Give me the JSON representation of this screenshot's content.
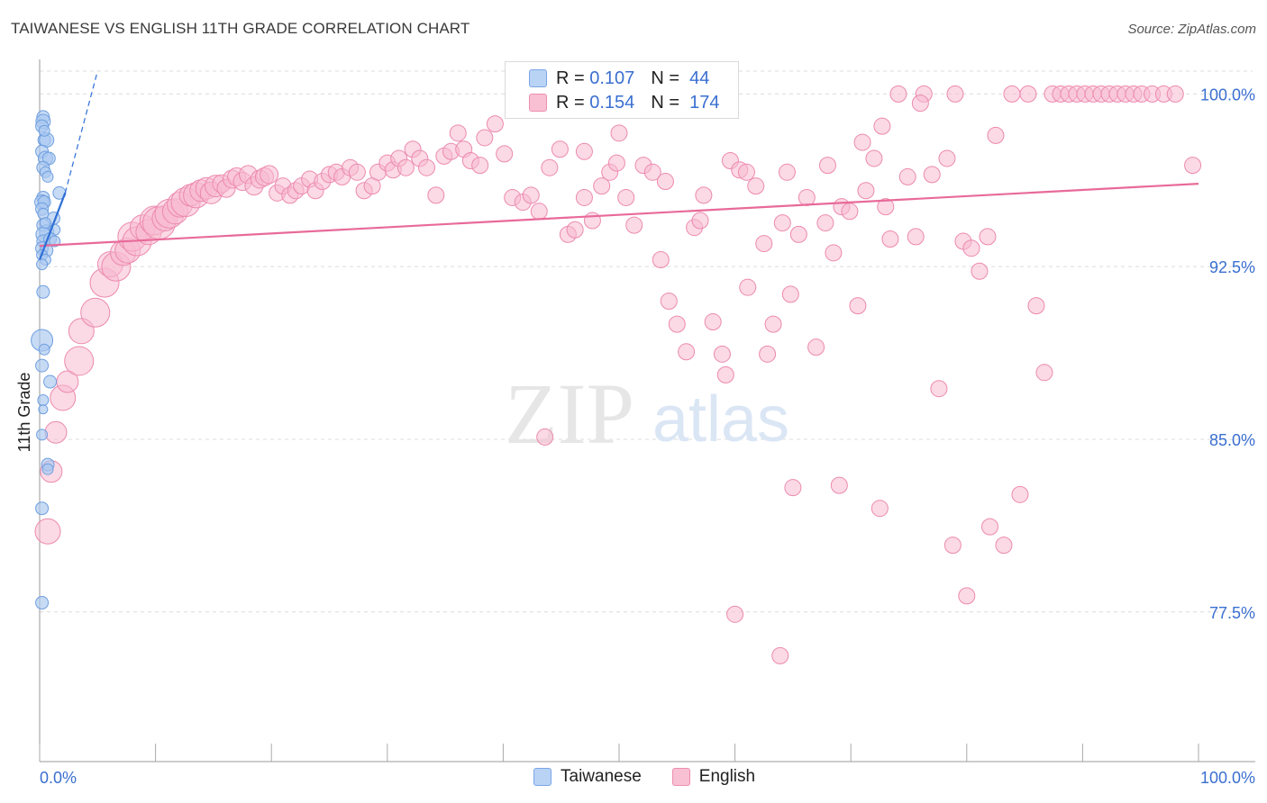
{
  "header": {
    "title": "TAIWANESE VS ENGLISH 11TH GRADE CORRELATION CHART",
    "source": "Source: ZipAtlas.com"
  },
  "watermark": {
    "zip": "ZIP",
    "atlas": "atlas"
  },
  "legend": {
    "r_label": "R =",
    "n_label": "N =",
    "rows": [
      {
        "name": "Taiwanese",
        "r": "0.107",
        "n": "44"
      },
      {
        "name": "English",
        "r": "0.154",
        "n": "174"
      }
    ]
  },
  "bottom_legend": {
    "taiwanese": "Taiwanese",
    "english": "English"
  },
  "colors": {
    "taiwanese_fill": "#a9c8f0",
    "taiwanese_stroke": "#6f9fe0",
    "taiwanese_line": "#2f6fd6",
    "english_fill": "#f7bad0",
    "english_stroke": "#ec8aae",
    "english_line": "#e86a99",
    "tick_label": "#3a6fd0",
    "grid": "#dcdcdc"
  },
  "chart_data": {
    "type": "scatter",
    "title": "TAIWANESE VS ENGLISH 11TH GRADE CORRELATION CHART",
    "xlabel": "",
    "ylabel": "11th Grade",
    "xlim": [
      0,
      100
    ],
    "ylim": [
      71.0,
      101.5
    ],
    "x_tick_labels": [
      "0.0%",
      "100.0%"
    ],
    "y_ticks": [
      77.5,
      85.0,
      92.5,
      100.0
    ],
    "y_tick_labels": [
      "77.5%",
      "85.0%",
      "92.5%",
      "100.0%"
    ],
    "series": [
      {
        "name": "Taiwanese",
        "r": 0.107,
        "n": 44,
        "trend": {
          "x": [
            0.0,
            2.2
          ],
          "y": [
            92.8,
            95.7
          ]
        },
        "trend_extended": {
          "x": [
            2.2,
            5.0
          ],
          "y": [
            95.7,
            101.0
          ]
        },
        "points": [
          [
            0.3,
            99.0,
            7
          ],
          [
            0.3,
            98.8,
            8
          ],
          [
            0.2,
            98.6,
            7
          ],
          [
            0.4,
            98.0,
            7
          ],
          [
            0.6,
            98.0,
            8
          ],
          [
            0.2,
            97.5,
            7
          ],
          [
            0.5,
            97.2,
            8
          ],
          [
            0.8,
            97.2,
            7
          ],
          [
            0.3,
            96.8,
            7
          ],
          [
            0.5,
            96.6,
            6
          ],
          [
            1.7,
            95.7,
            7
          ],
          [
            0.3,
            95.5,
            7
          ],
          [
            0.2,
            95.3,
            8
          ],
          [
            0.4,
            95.3,
            7
          ],
          [
            0.2,
            95.0,
            7
          ],
          [
            1.2,
            94.6,
            7
          ],
          [
            0.3,
            94.3,
            7
          ],
          [
            0.6,
            94.0,
            8
          ],
          [
            1.3,
            94.1,
            6
          ],
          [
            0.3,
            93.9,
            8
          ],
          [
            0.3,
            93.6,
            7
          ],
          [
            0.9,
            93.7,
            7
          ],
          [
            1.3,
            93.6,
            6
          ],
          [
            0.2,
            93.3,
            7
          ],
          [
            0.6,
            93.2,
            7
          ],
          [
            0.2,
            93.0,
            6
          ],
          [
            0.5,
            92.8,
            6
          ],
          [
            0.3,
            91.4,
            7
          ],
          [
            0.2,
            89.3,
            12
          ],
          [
            0.2,
            88.2,
            7
          ],
          [
            0.9,
            87.5,
            7
          ],
          [
            0.3,
            86.7,
            6
          ],
          [
            0.2,
            85.2,
            6
          ],
          [
            0.7,
            83.9,
            7
          ],
          [
            0.7,
            83.7,
            6
          ],
          [
            0.2,
            82.0,
            7
          ],
          [
            0.2,
            77.9,
            7
          ],
          [
            0.4,
            98.4,
            6
          ],
          [
            0.7,
            96.4,
            6
          ],
          [
            0.3,
            94.8,
            6
          ],
          [
            0.5,
            94.4,
            6
          ],
          [
            0.2,
            92.6,
            6
          ],
          [
            0.4,
            88.9,
            6
          ],
          [
            0.3,
            86.3,
            5
          ]
        ]
      },
      {
        "name": "English",
        "r": 0.154,
        "n": 174,
        "trend": {
          "x": [
            0.0,
            100.0
          ],
          "y": [
            93.4,
            96.1
          ]
        },
        "points": [
          [
            0.7,
            81.0,
            14
          ],
          [
            1.0,
            83.6,
            12
          ],
          [
            1.4,
            85.3,
            12
          ],
          [
            2.0,
            86.8,
            14
          ],
          [
            2.4,
            87.5,
            12
          ],
          [
            3.4,
            88.4,
            16
          ],
          [
            3.6,
            89.7,
            14
          ],
          [
            4.8,
            90.5,
            16
          ],
          [
            5.6,
            91.8,
            16
          ],
          [
            6.1,
            92.6,
            14
          ],
          [
            6.6,
            92.5,
            16
          ],
          [
            7.2,
            93.1,
            14
          ],
          [
            7.6,
            93.2,
            14
          ],
          [
            8.0,
            93.8,
            16
          ],
          [
            8.4,
            93.6,
            16
          ],
          [
            8.9,
            94.2,
            14
          ],
          [
            9.4,
            94.0,
            14
          ],
          [
            9.9,
            94.5,
            16
          ],
          [
            10.3,
            94.4,
            18
          ],
          [
            10.8,
            94.6,
            14
          ],
          [
            11.2,
            94.8,
            16
          ],
          [
            11.7,
            94.9,
            14
          ],
          [
            12.1,
            95.2,
            14
          ],
          [
            12.6,
            95.3,
            16
          ],
          [
            13.0,
            95.6,
            12
          ],
          [
            13.5,
            95.6,
            14
          ],
          [
            13.9,
            95.8,
            12
          ],
          [
            14.4,
            95.9,
            12
          ],
          [
            14.8,
            95.7,
            12
          ],
          [
            15.2,
            96.0,
            12
          ],
          [
            15.7,
            96.1,
            10
          ],
          [
            16.1,
            95.9,
            10
          ],
          [
            16.6,
            96.3,
            10
          ],
          [
            17.0,
            96.4,
            10
          ],
          [
            17.5,
            96.2,
            10
          ],
          [
            18.0,
            96.5,
            10
          ],
          [
            18.5,
            96.0,
            10
          ],
          [
            19.0,
            96.3,
            10
          ],
          [
            19.4,
            96.4,
            10
          ],
          [
            19.8,
            96.5,
            10
          ],
          [
            20.5,
            95.7,
            9
          ],
          [
            21.0,
            96.0,
            9
          ],
          [
            21.6,
            95.6,
            9
          ],
          [
            22.1,
            95.8,
            9
          ],
          [
            22.6,
            96.0,
            9
          ],
          [
            23.3,
            96.3,
            9
          ],
          [
            23.8,
            95.8,
            9
          ],
          [
            24.4,
            96.2,
            9
          ],
          [
            25.0,
            96.5,
            9
          ],
          [
            25.6,
            96.6,
            9
          ],
          [
            26.1,
            96.4,
            9
          ],
          [
            26.8,
            96.8,
            9
          ],
          [
            27.4,
            96.6,
            9
          ],
          [
            28.0,
            95.8,
            9
          ],
          [
            28.7,
            96.0,
            9
          ],
          [
            29.2,
            96.6,
            9
          ],
          [
            30.0,
            97.0,
            9
          ],
          [
            30.5,
            96.7,
            9
          ],
          [
            31.0,
            97.2,
            9
          ],
          [
            31.6,
            96.8,
            9
          ],
          [
            32.2,
            97.6,
            9
          ],
          [
            32.8,
            97.2,
            9
          ],
          [
            33.4,
            96.8,
            9
          ],
          [
            34.2,
            95.6,
            9
          ],
          [
            34.9,
            97.3,
            9
          ],
          [
            35.5,
            97.5,
            9
          ],
          [
            36.1,
            98.3,
            9
          ],
          [
            36.6,
            97.6,
            9
          ],
          [
            37.2,
            97.1,
            9
          ],
          [
            38.0,
            96.9,
            9
          ],
          [
            38.4,
            98.1,
            9
          ],
          [
            39.3,
            98.7,
            9
          ],
          [
            40.1,
            97.4,
            9
          ],
          [
            40.8,
            95.5,
            9
          ],
          [
            41.7,
            95.3,
            9
          ],
          [
            42.4,
            95.6,
            9
          ],
          [
            43.1,
            94.9,
            9
          ],
          [
            44.0,
            96.8,
            9
          ],
          [
            44.9,
            97.6,
            9
          ],
          [
            45.6,
            93.9,
            9
          ],
          [
            46.2,
            94.1,
            9
          ],
          [
            47.0,
            95.5,
            9
          ],
          [
            47.7,
            94.5,
            9
          ],
          [
            48.5,
            96.0,
            9
          ],
          [
            49.2,
            96.6,
            9
          ],
          [
            49.8,
            97.0,
            9
          ],
          [
            50.6,
            95.5,
            9
          ],
          [
            51.3,
            94.3,
            9
          ],
          [
            52.1,
            96.9,
            9
          ],
          [
            52.9,
            96.6,
            9
          ],
          [
            53.6,
            92.8,
            9
          ],
          [
            54.3,
            91.0,
            9
          ],
          [
            55.0,
            90.0,
            9
          ],
          [
            55.8,
            88.8,
            9
          ],
          [
            56.5,
            94.2,
            9
          ],
          [
            57.3,
            95.6,
            9
          ],
          [
            58.1,
            90.1,
            9
          ],
          [
            58.9,
            88.7,
            9
          ],
          [
            59.6,
            97.1,
            9
          ],
          [
            60.4,
            96.7,
            9
          ],
          [
            61.1,
            91.6,
            9
          ],
          [
            61.8,
            96.0,
            9
          ],
          [
            62.5,
            93.5,
            9
          ],
          [
            63.3,
            90.0,
            9
          ],
          [
            64.1,
            94.4,
            9
          ],
          [
            64.8,
            91.3,
            9
          ],
          [
            65.5,
            93.9,
            9
          ],
          [
            66.2,
            95.5,
            9
          ],
          [
            67.0,
            89.0,
            9
          ],
          [
            67.8,
            94.4,
            9
          ],
          [
            68.5,
            93.1,
            9
          ],
          [
            69.2,
            95.1,
            9
          ],
          [
            69.9,
            94.9,
            9
          ],
          [
            70.6,
            90.8,
            9
          ],
          [
            71.3,
            95.8,
            9
          ],
          [
            72.0,
            97.2,
            9
          ],
          [
            72.7,
            98.6,
            9
          ],
          [
            73.4,
            93.7,
            9
          ],
          [
            74.1,
            100.0,
            9
          ],
          [
            74.9,
            96.4,
            9
          ],
          [
            75.6,
            93.8,
            9
          ],
          [
            76.3,
            100.0,
            9
          ],
          [
            77.0,
            96.5,
            9
          ],
          [
            77.6,
            87.2,
            9
          ],
          [
            78.3,
            97.2,
            9
          ],
          [
            79.0,
            100.0,
            9
          ],
          [
            79.7,
            93.6,
            9
          ],
          [
            80.4,
            93.3,
            9
          ],
          [
            81.1,
            92.3,
            9
          ],
          [
            81.8,
            93.8,
            9
          ],
          [
            82.5,
            98.2,
            9
          ],
          [
            83.2,
            80.4,
            9
          ],
          [
            83.9,
            100.0,
            9
          ],
          [
            84.6,
            82.6,
            9
          ],
          [
            85.3,
            100.0,
            9
          ],
          [
            86.0,
            90.8,
            9
          ],
          [
            86.7,
            87.9,
            9
          ],
          [
            87.4,
            100.0,
            9
          ],
          [
            88.1,
            100.0,
            9
          ],
          [
            88.8,
            100.0,
            9
          ],
          [
            89.5,
            100.0,
            9
          ],
          [
            90.2,
            100.0,
            9
          ],
          [
            90.9,
            100.0,
            9
          ],
          [
            91.6,
            100.0,
            9
          ],
          [
            92.3,
            100.0,
            9
          ],
          [
            93.0,
            100.0,
            9
          ],
          [
            93.7,
            100.0,
            9
          ],
          [
            94.4,
            100.0,
            9
          ],
          [
            95.1,
            100.0,
            9
          ],
          [
            96.0,
            100.0,
            9
          ],
          [
            97.0,
            100.0,
            9
          ],
          [
            98.0,
            100.0,
            9
          ],
          [
            99.5,
            96.9,
            9
          ],
          [
            59.2,
            87.8,
            9
          ],
          [
            62.8,
            88.7,
            9
          ],
          [
            65.0,
            82.9,
            9
          ],
          [
            69.0,
            83.0,
            9
          ],
          [
            72.5,
            82.0,
            9
          ],
          [
            60.0,
            77.4,
            9
          ],
          [
            63.9,
            75.6,
            9
          ],
          [
            43.6,
            85.1,
            9
          ],
          [
            47.0,
            97.5,
            9
          ],
          [
            50.0,
            98.3,
            9
          ],
          [
            54.0,
            96.2,
            9
          ],
          [
            57.0,
            94.5,
            9
          ],
          [
            61.0,
            96.6,
            9
          ],
          [
            64.5,
            96.6,
            9
          ],
          [
            68.0,
            96.9,
            9
          ],
          [
            71.0,
            97.9,
            9
          ],
          [
            73.0,
            95.1,
            9
          ],
          [
            76.0,
            99.6,
            9
          ],
          [
            78.8,
            80.4,
            9
          ],
          [
            80.0,
            78.2,
            9
          ],
          [
            82.0,
            81.2,
            9
          ]
        ]
      }
    ]
  }
}
